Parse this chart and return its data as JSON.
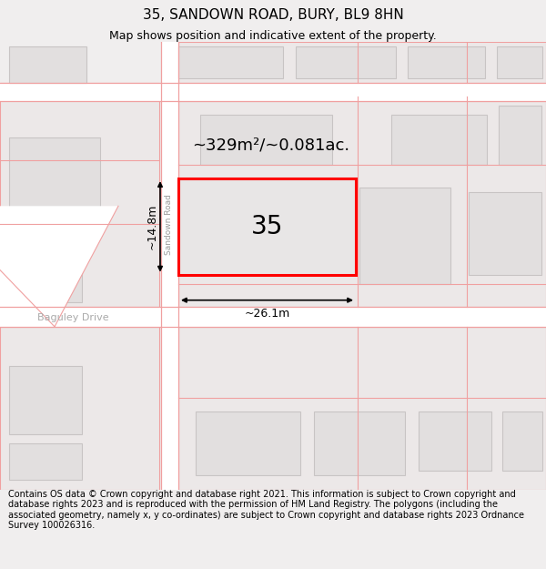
{
  "title": "35, SANDOWN ROAD, BURY, BL9 8HN",
  "subtitle": "Map shows position and indicative extent of the property.",
  "footer": "Contains OS data © Crown copyright and database right 2021. This information is subject to Crown copyright and database rights 2023 and is reproduced with the permission of HM Land Registry. The polygons (including the associated geometry, namely x, y co-ordinates) are subject to Crown copyright and database rights 2023 Ordnance Survey 100026316.",
  "bg_color": "#f0eeee",
  "road_color": "#ffffff",
  "building_fill": "#e2dfdf",
  "building_outline": "#c8c4c4",
  "highlight_fill": "#e8e4e4",
  "highlight_outline": "#ff0000",
  "road_line_color": "#f0a0a0",
  "area_label": "~329m²/~0.081ac.",
  "number_label": "35",
  "width_label": "~26.1m",
  "height_label": "~14.8m",
  "street_label": "Sandown Road",
  "street_label2": "Baguley Drive",
  "title_fontsize": 11,
  "subtitle_fontsize": 9,
  "footer_fontsize": 7.0
}
